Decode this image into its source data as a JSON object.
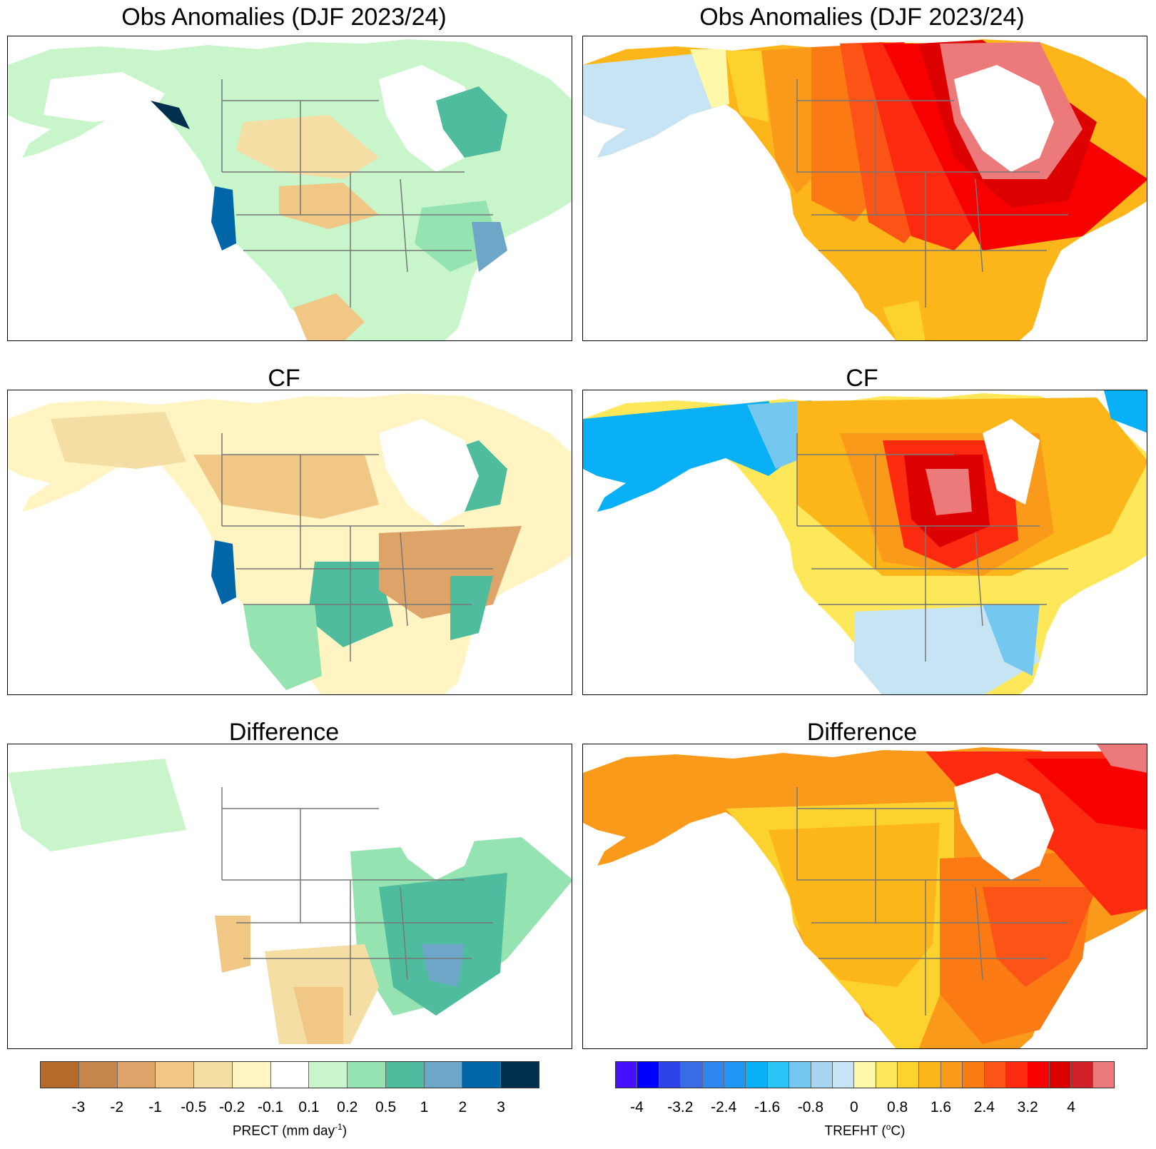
{
  "panels": {
    "r1c1": {
      "title": "Obs Anomalies (DJF 2023/24)"
    },
    "r1c2": {
      "title": "Obs Anomalies (DJF 2023/24)"
    },
    "r2c1": {
      "title": "CF"
    },
    "r2c2": {
      "title": "CF"
    },
    "r3c1": {
      "title": "Difference"
    },
    "r3c2": {
      "title": "Difference"
    }
  },
  "colorbars": {
    "prect": {
      "label_main": "PRECT (mm day",
      "label_sup": "-1",
      "label_end": ")",
      "colors": [
        "#b5692b",
        "#c8874a",
        "#dea368",
        "#f0c784",
        "#f4dea3",
        "#fff4c2",
        "#ffffff",
        "#c8f5c9",
        "#95e3b0",
        "#4fbc9e",
        "#6ea6c8",
        "#0066a8",
        "#00304e"
      ],
      "ticks": [
        "-3",
        "-2",
        "-1",
        "-0.5",
        "-0.2",
        "-0.1",
        "0.1",
        "0.2",
        "0.5",
        "1",
        "2",
        "3"
      ]
    },
    "trefht": {
      "label_main": "TREFHT (",
      "label_sup": "o",
      "label_end": "C)",
      "colors": [
        "#4410ff",
        "#0000ff",
        "#2d45e8",
        "#3a6be6",
        "#2f86ef",
        "#1f97f4",
        "#0ab0f6",
        "#2ac4f6",
        "#74c8ef",
        "#a6d6f1",
        "#c6e4f4",
        "#fff8a8",
        "#ffe75a",
        "#fcd22f",
        "#fcb61a",
        "#fa9a1a",
        "#fc7a14",
        "#fb5416",
        "#fc2a0e",
        "#f60000",
        "#dd0000",
        "#d0202a",
        "#ec7a7a"
      ],
      "ticks": [
        "-4",
        "-3.2",
        "-2.4",
        "-1.6",
        "-0.8",
        "0",
        "0.8",
        "1.6",
        "2.4",
        "3.2",
        "4"
      ]
    }
  }
}
